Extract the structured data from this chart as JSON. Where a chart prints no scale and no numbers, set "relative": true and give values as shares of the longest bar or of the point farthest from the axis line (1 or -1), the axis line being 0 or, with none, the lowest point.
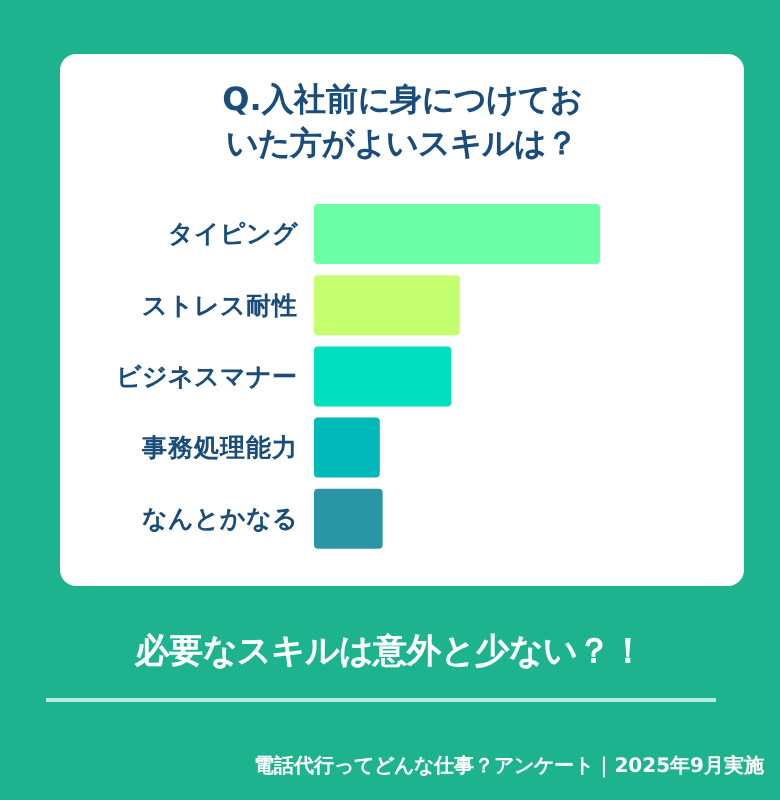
{
  "chart_data": {
    "type": "bar",
    "orientation": "horizontal",
    "relative": true,
    "title": "Q.入社前に身につけておいた方がよいスキルは？",
    "subtitle": "必要なスキルは意外と少ない？！",
    "annotations": [
      "電話代行ってどんな仕事？アンケート｜2025年9月実施"
    ],
    "categories": [
      "タイピング",
      "ストレス耐性",
      "ビジネスマナー",
      "事務処理能力",
      "なんとかなる"
    ],
    "values": [
      1,
      0.51,
      0.48,
      0.23,
      0.24
    ],
    "colors": [
      "#6bffa6",
      "#c3ff6e",
      "#00e0bf",
      "#00b8b8",
      "#2a96a4"
    ],
    "legend": false
  }
}
